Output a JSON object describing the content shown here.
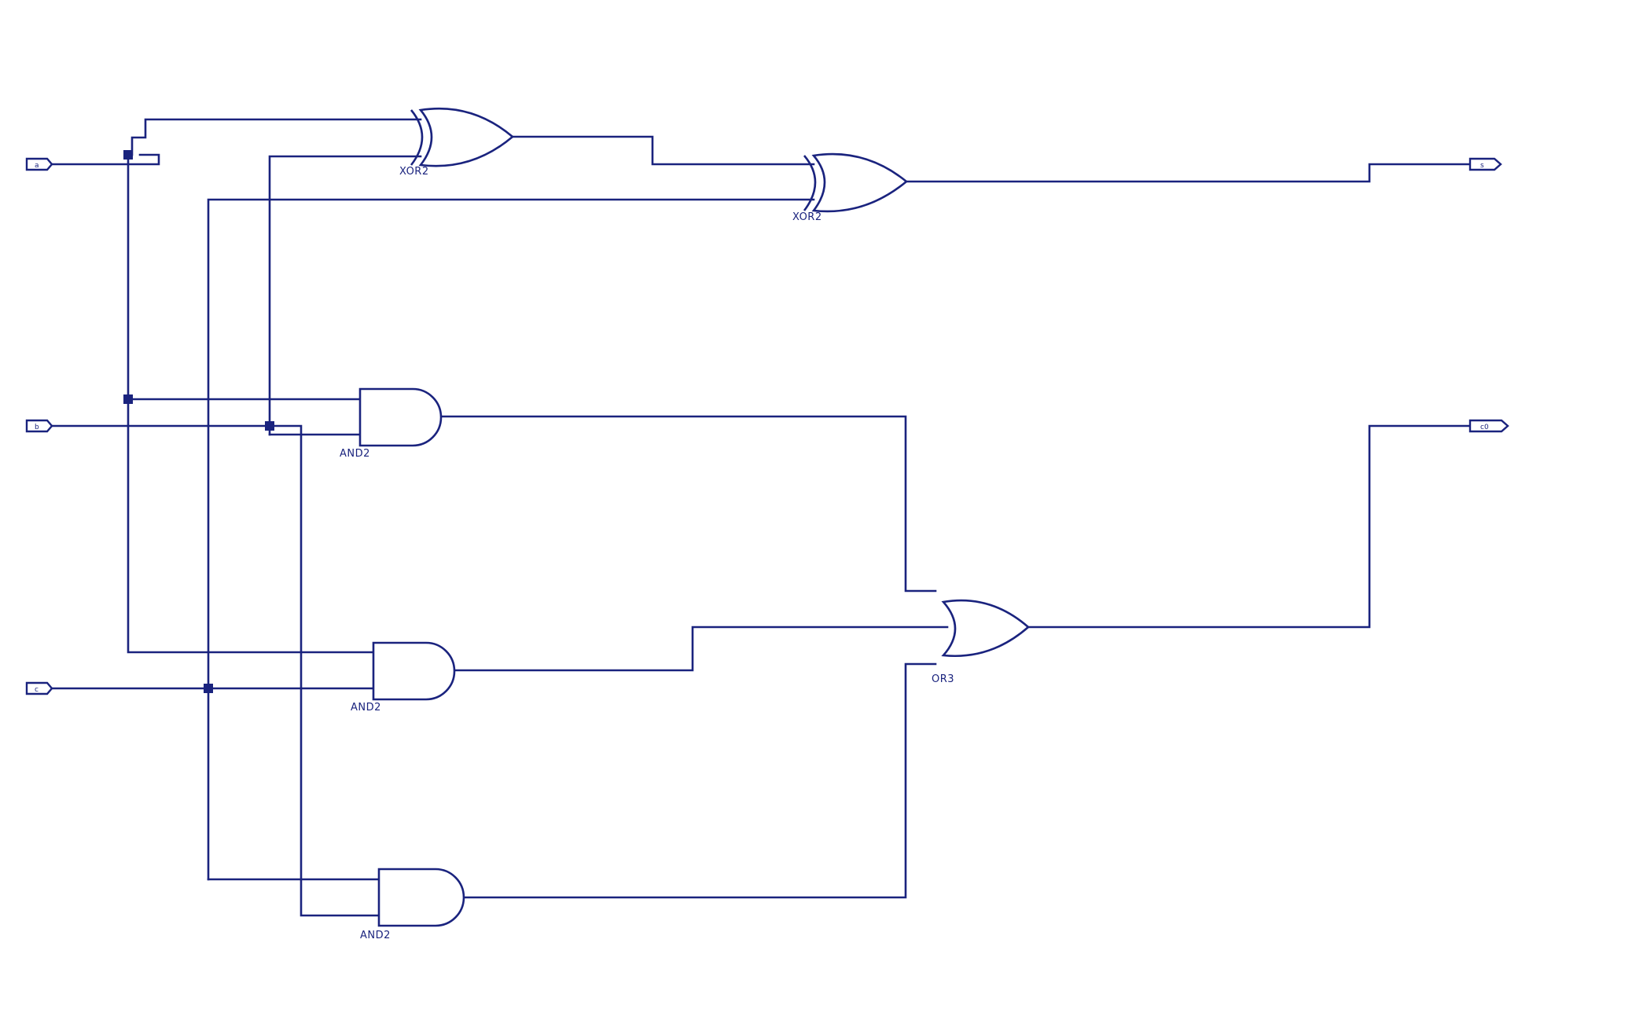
{
  "diagram": {
    "inputs": [
      {
        "id": "a",
        "label": "a"
      },
      {
        "id": "b",
        "label": "b"
      },
      {
        "id": "c",
        "label": "c"
      }
    ],
    "outputs": [
      {
        "id": "s",
        "label": "s"
      },
      {
        "id": "c0",
        "label": "c0"
      }
    ],
    "gates": [
      {
        "id": "xor1",
        "type": "XOR2"
      },
      {
        "id": "xor2",
        "type": "XOR2"
      },
      {
        "id": "and1",
        "type": "AND2"
      },
      {
        "id": "and2",
        "type": "AND2"
      },
      {
        "id": "and3",
        "type": "AND2"
      },
      {
        "id": "or1",
        "type": "OR3"
      }
    ],
    "colors": {
      "wire": "#1a237e",
      "background": "#ffffff"
    }
  }
}
